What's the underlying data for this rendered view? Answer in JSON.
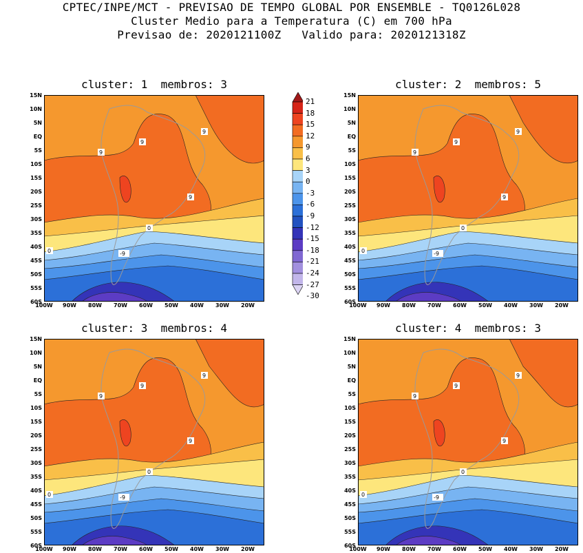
{
  "header": {
    "line1": "CPTEC/INPE/MCT - PREVISAO DE TEMPO GLOBAL POR ENSEMBLE - TQ0126L028",
    "line2": "Cluster Medio para a Temperatura (C) em 700 hPa",
    "line3": "Previsao de: 2020121100Z   Valido para: 2020121318Z"
  },
  "panels": [
    {
      "title": "cluster: 1  membros: 3"
    },
    {
      "title": "cluster: 2  membros: 5"
    },
    {
      "title": "cluster: 3  membros: 4"
    },
    {
      "title": "cluster: 4  membros: 3"
    }
  ],
  "lat_labels": [
    "15N",
    "10N",
    "5N",
    "EQ",
    "5S",
    "10S",
    "15S",
    "20S",
    "25S",
    "30S",
    "35S",
    "40S",
    "45S",
    "50S",
    "55S",
    "60S"
  ],
  "lon_labels": [
    "100W",
    "90W",
    "80W",
    "70W",
    "60W",
    "50W",
    "40W",
    "30W",
    "20W"
  ],
  "contour_labels": [
    "9",
    "9",
    "9",
    "9",
    "0",
    "0",
    "-9"
  ],
  "colorbar": {
    "levels": [
      "21",
      "18",
      "15",
      "12",
      "9",
      "6",
      "3",
      "0",
      "-3",
      "-6",
      "-9",
      "-12",
      "-15",
      "-18",
      "-21",
      "-24",
      "-27",
      "-30"
    ],
    "colors": [
      "#a01818",
      "#d62418",
      "#ee4420",
      "#f26c22",
      "#f5982e",
      "#f9bf48",
      "#fde67c",
      "#a8d4f8",
      "#78b4f2",
      "#4c94ea",
      "#2c70d8",
      "#2252c0",
      "#3434b8",
      "#5c3cc4",
      "#8068d2",
      "#a290de",
      "#c2b6ea",
      "#dcd4f4"
    ]
  }
}
